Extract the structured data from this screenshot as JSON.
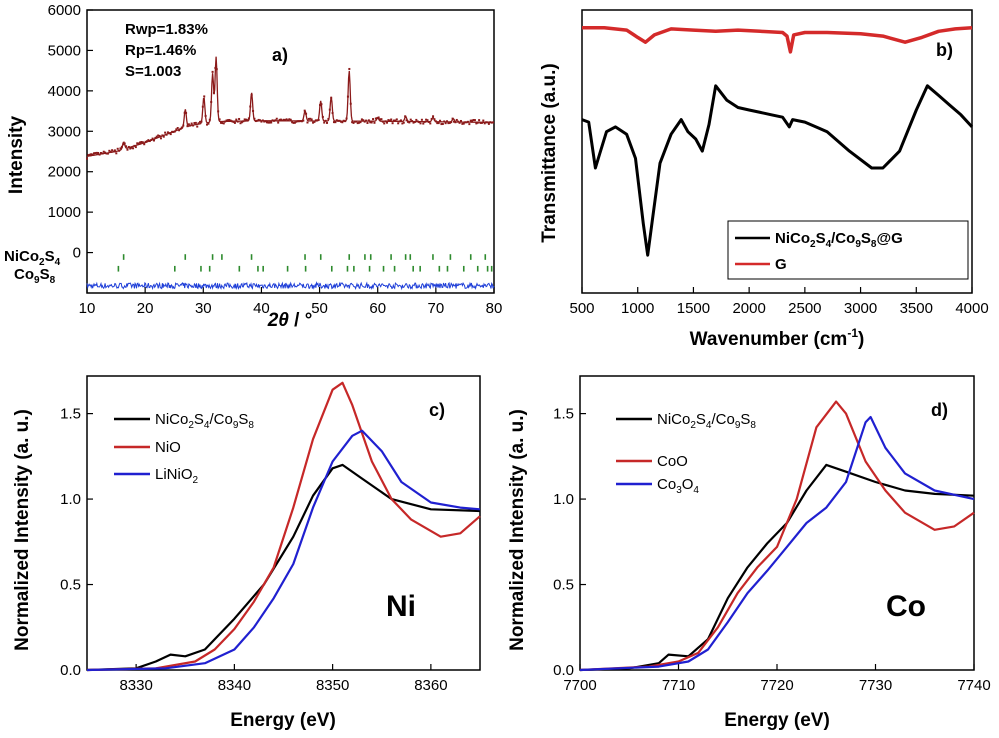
{
  "chart_data": [
    {
      "id": "a",
      "type": "scatter",
      "panel_label": "a)",
      "xlabel_italic": "2θ",
      "xlabel_unit": " / °",
      "ylabel": "Intensity",
      "xlim": [
        10,
        80
      ],
      "ylim": [
        -1000,
        6000
      ],
      "xticks": [
        10,
        20,
        30,
        40,
        50,
        60,
        70,
        80
      ],
      "yticks": [
        0,
        1000,
        2000,
        3000,
        4000,
        5000,
        6000
      ],
      "stats": [
        "Rwp=1.83%",
        "Rp=1.46%",
        "S=1.003"
      ],
      "phase_labels": [
        {
          "main": "NiCo",
          "sub1": "2",
          "mid": "S",
          "sub2": "4"
        },
        {
          "main": "Co",
          "sub1": "9",
          "mid": "S",
          "sub2": "8"
        }
      ],
      "pattern": {
        "background": [
          [
            10,
            2380
          ],
          [
            15,
            2500
          ],
          [
            20,
            2720
          ],
          [
            25,
            3000
          ],
          [
            28,
            3150
          ],
          [
            32,
            3240
          ],
          [
            40,
            3260
          ],
          [
            60,
            3250
          ],
          [
            80,
            3220
          ]
        ],
        "peaks": [
          {
            "x": 16.3,
            "h": 180
          },
          {
            "x": 26.9,
            "h": 450
          },
          {
            "x": 30.1,
            "h": 650
          },
          {
            "x": 31.6,
            "h": 1200
          },
          {
            "x": 32.2,
            "h": 1600
          },
          {
            "x": 38.3,
            "h": 700
          },
          {
            "x": 47.5,
            "h": 250
          },
          {
            "x": 50.2,
            "h": 500
          },
          {
            "x": 52.0,
            "h": 600
          },
          {
            "x": 55.1,
            "h": 1250
          },
          {
            "x": 60.0,
            "h": 90
          },
          {
            "x": 64.8,
            "h": 120
          },
          {
            "x": 69.5,
            "h": 110
          },
          {
            "x": 73.0,
            "h": 80
          }
        ],
        "difference_level": -820,
        "color_obs": "#8b1a1a",
        "color_diff": "#1f3fd8",
        "color_ticks": "#2e8b2e"
      },
      "tick_rows": [
        {
          "positions": [
            16.3,
            26.9,
            31.6,
            33.2,
            38.3,
            47.5,
            50.2,
            55.1,
            57.8,
            58.8,
            62.3,
            64.8,
            65.6,
            69.5,
            72.5,
            76.0,
            78.5
          ]
        },
        {
          "positions": [
            15.4,
            25.1,
            29.6,
            31.1,
            36.2,
            39.4,
            40.3,
            44.5,
            47.6,
            52.1,
            54.8,
            55.9,
            58.6,
            61.0,
            62.9,
            66.1,
            67.3,
            70.6,
            72.0,
            74.8,
            77.2,
            78.9,
            79.6
          ]
        }
      ]
    },
    {
      "id": "b",
      "type": "line",
      "panel_label": "b)",
      "xlabel": "Wavenumber (cm",
      "xlabel_sup": "-1",
      "xlabel_end": ")",
      "ylabel": "Transmittance (a.u.)",
      "xlim": [
        500,
        4000
      ],
      "ylim": [
        0,
        1
      ],
      "xticks": [
        500,
        1000,
        1500,
        2000,
        2500,
        3000,
        3500,
        4000
      ],
      "legend": [
        {
          "main": "NiCo",
          "s1": "2",
          "a": "S",
          "s2": "4",
          "b": "/Co",
          "s3": "9",
          "c": "S",
          "s4": "8",
          "d": "@G",
          "color": "#000000"
        },
        {
          "main": "G",
          "color": "#d42a2a"
        }
      ],
      "series": [
        {
          "color": "#000000",
          "points": [
            [
              500,
              0.58
            ],
            [
              560,
              0.57
            ],
            [
              620,
              0.38
            ],
            [
              660,
              0.44
            ],
            [
              720,
              0.53
            ],
            [
              800,
              0.55
            ],
            [
              900,
              0.52
            ],
            [
              980,
              0.42
            ],
            [
              1050,
              0.15
            ],
            [
              1090,
              0.02
            ],
            [
              1130,
              0.16
            ],
            [
              1200,
              0.4
            ],
            [
              1300,
              0.52
            ],
            [
              1390,
              0.58
            ],
            [
              1450,
              0.53
            ],
            [
              1520,
              0.5
            ],
            [
              1580,
              0.45
            ],
            [
              1640,
              0.56
            ],
            [
              1700,
              0.72
            ],
            [
              1800,
              0.66
            ],
            [
              1900,
              0.63
            ],
            [
              2000,
              0.62
            ],
            [
              2100,
              0.61
            ],
            [
              2200,
              0.6
            ],
            [
              2300,
              0.59
            ],
            [
              2360,
              0.55
            ],
            [
              2390,
              0.58
            ],
            [
              2500,
              0.57
            ],
            [
              2700,
              0.53
            ],
            [
              2900,
              0.45
            ],
            [
              3100,
              0.38
            ],
            [
              3200,
              0.38
            ],
            [
              3350,
              0.45
            ],
            [
              3500,
              0.62
            ],
            [
              3600,
              0.72
            ],
            [
              3700,
              0.68
            ],
            [
              3800,
              0.64
            ],
            [
              3900,
              0.6
            ],
            [
              4000,
              0.55
            ]
          ]
        },
        {
          "color": "#d42a2a",
          "points": [
            [
              500,
              0.96
            ],
            [
              700,
              0.96
            ],
            [
              900,
              0.95
            ],
            [
              1000,
              0.92
            ],
            [
              1070,
              0.9
            ],
            [
              1150,
              0.93
            ],
            [
              1300,
              0.955
            ],
            [
              1500,
              0.95
            ],
            [
              1700,
              0.945
            ],
            [
              1900,
              0.95
            ],
            [
              2100,
              0.945
            ],
            [
              2300,
              0.94
            ],
            [
              2340,
              0.925
            ],
            [
              2370,
              0.86
            ],
            [
              2400,
              0.93
            ],
            [
              2500,
              0.94
            ],
            [
              2700,
              0.94
            ],
            [
              3000,
              0.935
            ],
            [
              3200,
              0.925
            ],
            [
              3400,
              0.9
            ],
            [
              3550,
              0.92
            ],
            [
              3700,
              0.945
            ],
            [
              3850,
              0.955
            ],
            [
              4000,
              0.96
            ]
          ]
        }
      ]
    },
    {
      "id": "c",
      "type": "line",
      "panel_label": "c)",
      "element_label": "Ni",
      "xlabel": "Energy (eV)",
      "ylabel": "Normalized Intensity (a. u.)",
      "xlim": [
        8325,
        8365
      ],
      "ylim": [
        0,
        1.72
      ],
      "xticks": [
        8330,
        8340,
        8350,
        8360
      ],
      "yticks": [
        0.0,
        0.5,
        1.0,
        1.5
      ],
      "legend": [
        {
          "main": "NiCo",
          "s1": "2",
          "a": "S",
          "s2": "4",
          "b": "/Co",
          "s3": "9",
          "c": "S",
          "s4": "8",
          "color": "#000000"
        },
        {
          "main": "NiO",
          "color": "#c62828"
        },
        {
          "main": "LiNiO",
          "s1": "2",
          "color": "#2020d0"
        }
      ],
      "series": [
        {
          "color": "#000000",
          "points": [
            [
              8325,
              0.0
            ],
            [
              8330,
              0.01
            ],
            [
              8332,
              0.05
            ],
            [
              8333.5,
              0.09
            ],
            [
              8335,
              0.08
            ],
            [
              8337,
              0.12
            ],
            [
              8340,
              0.3
            ],
            [
              8343,
              0.5
            ],
            [
              8346,
              0.78
            ],
            [
              8348,
              1.02
            ],
            [
              8350,
              1.18
            ],
            [
              8351,
              1.2
            ],
            [
              8353,
              1.12
            ],
            [
              8356,
              1.0
            ],
            [
              8360,
              0.94
            ],
            [
              8365,
              0.93
            ]
          ]
        },
        {
          "color": "#c62828",
          "points": [
            [
              8325,
              0.0
            ],
            [
              8332,
              0.01
            ],
            [
              8336,
              0.05
            ],
            [
              8338,
              0.12
            ],
            [
              8340,
              0.24
            ],
            [
              8342,
              0.4
            ],
            [
              8344,
              0.6
            ],
            [
              8346,
              0.95
            ],
            [
              8348,
              1.35
            ],
            [
              8350,
              1.64
            ],
            [
              8351,
              1.68
            ],
            [
              8352,
              1.55
            ],
            [
              8354,
              1.22
            ],
            [
              8356,
              1.0
            ],
            [
              8358,
              0.88
            ],
            [
              8361,
              0.78
            ],
            [
              8363,
              0.8
            ],
            [
              8365,
              0.9
            ]
          ]
        },
        {
          "color": "#2020d0",
          "points": [
            [
              8325,
              0.0
            ],
            [
              8333,
              0.01
            ],
            [
              8337,
              0.04
            ],
            [
              8340,
              0.12
            ],
            [
              8342,
              0.25
            ],
            [
              8344,
              0.42
            ],
            [
              8346,
              0.62
            ],
            [
              8348,
              0.95
            ],
            [
              8350,
              1.22
            ],
            [
              8352,
              1.37
            ],
            [
              8353,
              1.4
            ],
            [
              8355,
              1.28
            ],
            [
              8357,
              1.1
            ],
            [
              8360,
              0.98
            ],
            [
              8363,
              0.95
            ],
            [
              8365,
              0.94
            ]
          ]
        }
      ]
    },
    {
      "id": "d",
      "type": "line",
      "panel_label": "d)",
      "element_label": "Co",
      "xlabel": "Energy (eV)",
      "ylabel": "Normalized Intensity (a. u.)",
      "xlim": [
        7700,
        7740
      ],
      "ylim": [
        0,
        1.72
      ],
      "xticks": [
        7700,
        7710,
        7720,
        7730,
        7740
      ],
      "yticks": [
        0.0,
        0.5,
        1.0,
        1.5
      ],
      "legend": [
        {
          "main": "NiCo",
          "s1": "2",
          "a": "S",
          "s2": "4",
          "b": "/Co",
          "s3": "9",
          "c": "S",
          "s4": "8",
          "color": "#000000"
        },
        {
          "main": "CoO",
          "color": "#c62828"
        },
        {
          "main": "Co",
          "s1": "3",
          "a": "O",
          "s2": "4",
          "color": "#2020d0"
        }
      ],
      "series": [
        {
          "color": "#000000",
          "points": [
            [
              7700,
              0.0
            ],
            [
              7705,
              0.01
            ],
            [
              7708,
              0.04
            ],
            [
              7709,
              0.09
            ],
            [
              7711,
              0.08
            ],
            [
              7713,
              0.18
            ],
            [
              7715,
              0.42
            ],
            [
              7717,
              0.6
            ],
            [
              7719,
              0.74
            ],
            [
              7721,
              0.86
            ],
            [
              7723,
              1.05
            ],
            [
              7725,
              1.2
            ],
            [
              7727,
              1.16
            ],
            [
              7730,
              1.1
            ],
            [
              7733,
              1.05
            ],
            [
              7736,
              1.03
            ],
            [
              7740,
              1.02
            ]
          ]
        },
        {
          "color": "#c62828",
          "points": [
            [
              7700,
              0.0
            ],
            [
              7707,
              0.02
            ],
            [
              7710,
              0.05
            ],
            [
              7712,
              0.1
            ],
            [
              7714,
              0.25
            ],
            [
              7716,
              0.45
            ],
            [
              7718,
              0.6
            ],
            [
              7720,
              0.72
            ],
            [
              7722,
              1.0
            ],
            [
              7724,
              1.42
            ],
            [
              7726,
              1.57
            ],
            [
              7727,
              1.5
            ],
            [
              7729,
              1.22
            ],
            [
              7731,
              1.05
            ],
            [
              7733,
              0.92
            ],
            [
              7736,
              0.82
            ],
            [
              7738,
              0.84
            ],
            [
              7740,
              0.92
            ]
          ]
        },
        {
          "color": "#2020d0",
          "points": [
            [
              7700,
              0.0
            ],
            [
              7708,
              0.02
            ],
            [
              7711,
              0.05
            ],
            [
              7713,
              0.12
            ],
            [
              7715,
              0.28
            ],
            [
              7717,
              0.45
            ],
            [
              7719,
              0.58
            ],
            [
              7721,
              0.72
            ],
            [
              7723,
              0.86
            ],
            [
              7725,
              0.95
            ],
            [
              7727,
              1.1
            ],
            [
              7729,
              1.45
            ],
            [
              7729.5,
              1.48
            ],
            [
              7731,
              1.3
            ],
            [
              7733,
              1.15
            ],
            [
              7736,
              1.05
            ],
            [
              7740,
              1.0
            ]
          ]
        }
      ]
    }
  ]
}
